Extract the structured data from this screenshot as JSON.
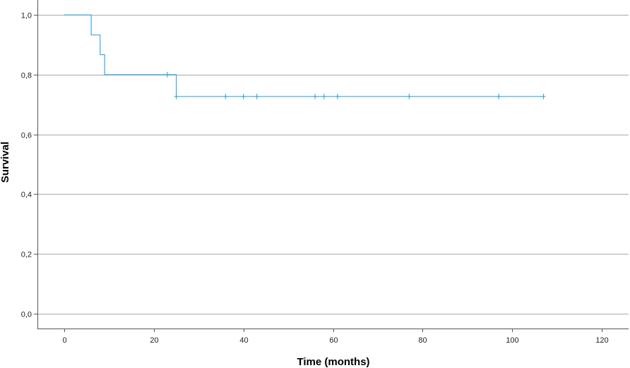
{
  "chart_data": {
    "type": "line",
    "subtype": "kaplan-meier-step",
    "title": "",
    "xlabel": "Time (months)",
    "ylabel": "Survival",
    "xlim": [
      -6,
      126
    ],
    "ylim": [
      -0.05,
      1.05
    ],
    "x_ticks": [
      0,
      20,
      40,
      60,
      80,
      100,
      120
    ],
    "y_ticks": [
      0.0,
      0.2,
      0.4,
      0.6,
      0.8,
      1.0
    ],
    "x_tick_labels": [
      "0",
      "20",
      "40",
      "60",
      "80",
      "100",
      "120"
    ],
    "y_tick_labels": [
      "0,0",
      "0,2",
      "0,4",
      "0,6",
      "0,8",
      "1,0"
    ],
    "grid": "horizontal",
    "legend": "none",
    "series_color": "#3aa8e8",
    "series": [
      {
        "steps": [
          {
            "x": 0,
            "y": 1.0
          },
          {
            "x": 6,
            "y": 0.933
          },
          {
            "x": 8,
            "y": 0.867
          },
          {
            "x": 9,
            "y": 0.8
          },
          {
            "x": 25,
            "y": 0.727
          }
        ],
        "end_x": 107,
        "censored": [
          {
            "x": 23,
            "y": 0.8
          },
          {
            "x": 25,
            "y": 0.727
          },
          {
            "x": 36,
            "y": 0.727
          },
          {
            "x": 40,
            "y": 0.727
          },
          {
            "x": 43,
            "y": 0.727
          },
          {
            "x": 56,
            "y": 0.727
          },
          {
            "x": 58,
            "y": 0.727
          },
          {
            "x": 61,
            "y": 0.727
          },
          {
            "x": 77,
            "y": 0.727
          },
          {
            "x": 97,
            "y": 0.727
          },
          {
            "x": 107,
            "y": 0.727
          }
        ]
      }
    ]
  }
}
